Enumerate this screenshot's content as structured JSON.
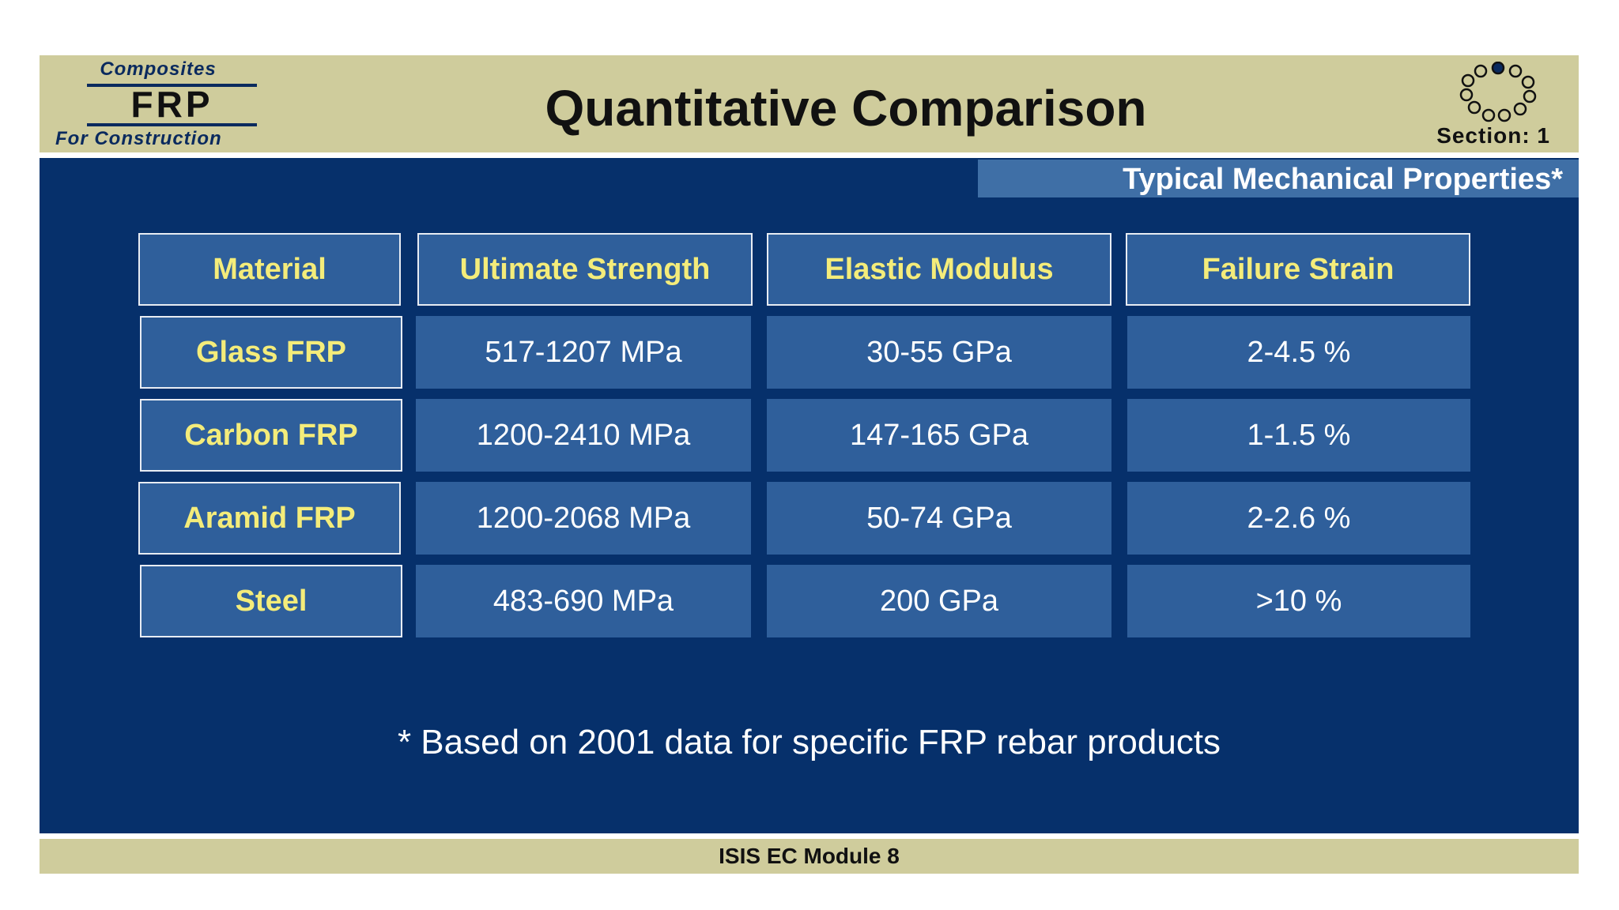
{
  "header": {
    "logo": {
      "top": "Composites",
      "main": "FRP",
      "bottom": "For Construction"
    },
    "title": "Quantitative Comparison",
    "section_label": "Section: 1",
    "section_icon": "ring-of-circles-icon"
  },
  "subtitle": "Typical Mechanical Properties*",
  "table": {
    "columns": [
      "Material",
      "Ultimate Strength",
      "Elastic Modulus",
      "Failure Strain"
    ],
    "rows": [
      [
        "Glass FRP",
        "517-1207 MPa",
        "30-55 GPa",
        "2-4.5 %"
      ],
      [
        "Carbon FRP",
        "1200-2410 MPa",
        "147-165 GPa",
        "1-1.5 %"
      ],
      [
        "Aramid FRP",
        "1200-2068 MPa",
        "50-74 GPa",
        "2-2.6 %"
      ],
      [
        "Steel",
        "483-690 MPa",
        "200 GPa",
        ">10 %"
      ]
    ]
  },
  "footnote": "* Based on 2001 data for specific FRP rebar products",
  "footer": "ISIS EC Module 8",
  "colors": {
    "header_band": "#cfcc9c",
    "main_background": "#06306b",
    "cell_background": "#2f5f9b",
    "heading_text": "#f4ec7a"
  }
}
